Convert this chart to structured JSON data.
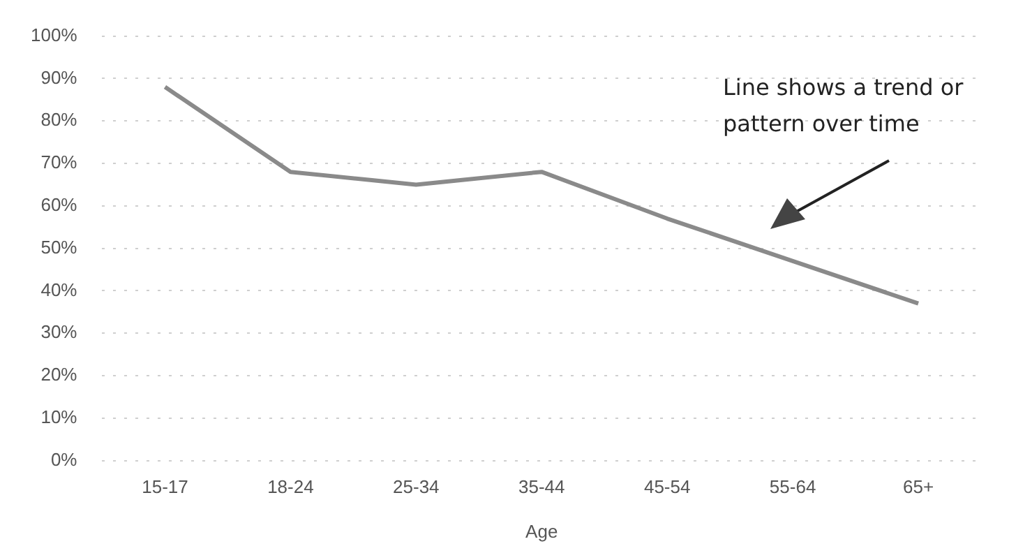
{
  "chart_data": {
    "type": "line",
    "xlabel": "Age",
    "categories": [
      "15-17",
      "18-24",
      "25-34",
      "35-44",
      "45-54",
      "55-64",
      "65+"
    ],
    "series": [
      {
        "color": "#8a8a8a",
        "values": [
          88,
          68,
          65,
          68,
          57,
          47,
          37
        ]
      }
    ],
    "ylim": [
      0,
      100
    ],
    "yticks": [
      {
        "value": 0,
        "label": "0%"
      },
      {
        "value": 10,
        "label": "10%"
      },
      {
        "value": 20,
        "label": "20%"
      },
      {
        "value": 30,
        "label": "30%"
      },
      {
        "value": 40,
        "label": "40%"
      },
      {
        "value": 50,
        "label": "50%"
      },
      {
        "value": 60,
        "label": "60%"
      },
      {
        "value": 70,
        "label": "70%"
      },
      {
        "value": 80,
        "label": "80%"
      },
      {
        "value": 90,
        "label": "90%"
      },
      {
        "value": 100,
        "label": "100%"
      }
    ],
    "grid": "y",
    "legend": false,
    "marker": "none",
    "line_style": "solid",
    "annotations": [
      "Line shows a trend or pattern over time"
    ]
  }
}
